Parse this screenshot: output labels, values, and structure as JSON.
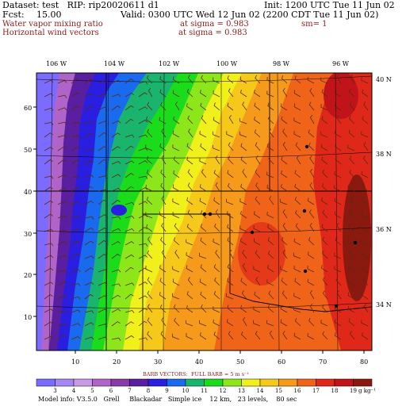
{
  "header": {
    "dataset": "Dataset: test   RIP: rip20020611 d1",
    "init": "Init: 1200 UTC Tue 11 Jun 02",
    "fcst_label": "Fcst:",
    "fcst_value": "15.00",
    "valid": "Valid: 0300 UTC Wed 12 Jun 02 (2200 CDT Tue 11 Jun 02)",
    "field1": "Water vapor mixing ratio",
    "field1_level": "at sigma = 0.983",
    "field1_sm": "sm= 1",
    "field2": "Horizontal wind vectors",
    "field2_level": "at sigma = 0.983"
  },
  "lon_labels": [
    "106 W",
    "104 W",
    "102 W",
    "100 W",
    "98 W",
    "96 W"
  ],
  "lat_labels": [
    "40 N",
    "38 N",
    "36 N",
    "34 N"
  ],
  "grid_y_labels": [
    "60",
    "50",
    "40",
    "30",
    "20",
    "10"
  ],
  "grid_x_labels": [
    "10",
    "20",
    "30",
    "40",
    "50",
    "60",
    "70",
    "80"
  ],
  "barb_note": "BARB VECTORS:  FULL BARB = 5 m s⁻¹",
  "colorbar": {
    "labels": [
      "3",
      "4",
      "5",
      "6",
      "7",
      "8",
      "9",
      "10",
      "11",
      "12",
      "13",
      "14",
      "15",
      "16",
      "17",
      "18",
      "19"
    ],
    "units": "g kg⁻¹",
    "colors": [
      "#7b6bff",
      "#a687f2",
      "#c89ae6",
      "#b064c8",
      "#8a3aa8",
      "#5a1fa0",
      "#2a1fe0",
      "#1a6af0",
      "#19b46e",
      "#1adc1a",
      "#8ce61a",
      "#f0f01a",
      "#f5c81a",
      "#f59a1a",
      "#f0641a",
      "#e0281a",
      "#c0141a",
      "#8a1a10"
    ]
  },
  "footer": "Model info: V3.5.0   Grell     Blackadar   Simple ice    12 km,   23 levels,    80 sec"
}
